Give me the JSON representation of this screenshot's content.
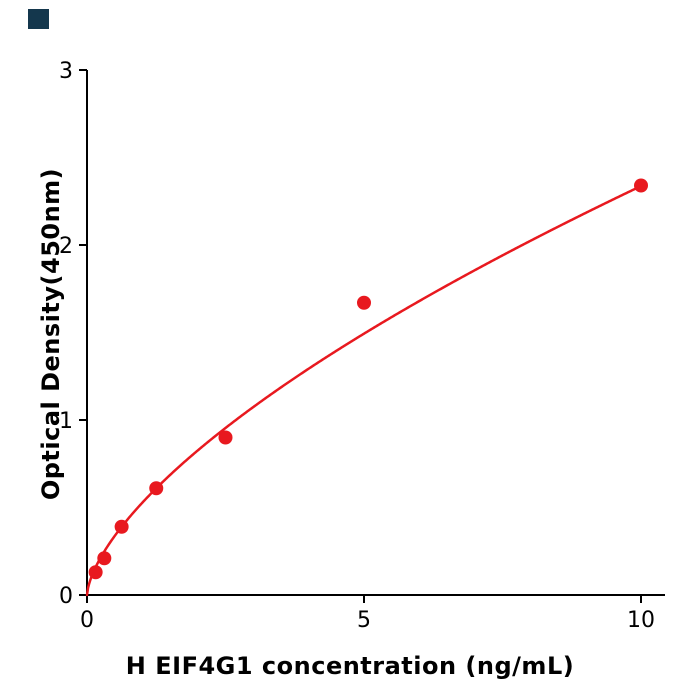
{
  "chart_data": {
    "type": "scatter",
    "title": "",
    "xlabel": "H  EIF4G1 concentration (ng/mL)",
    "ylabel": "Optical Density(450nm)",
    "x_ticks": [
      0,
      5,
      10
    ],
    "y_ticks": [
      0,
      1,
      2,
      3
    ],
    "xlim": [
      0,
      10.45
    ],
    "ylim": [
      0,
      3
    ],
    "grid": false,
    "legend": "none",
    "points": {
      "x": [
        0.156,
        0.3125,
        0.625,
        1.25,
        2.5,
        5,
        10
      ],
      "y": [
        0.13,
        0.21,
        0.39,
        0.61,
        0.9,
        1.67,
        2.34
      ]
    },
    "fit_curve": {
      "model": "power y = a*x^b",
      "a": 0.528,
      "b": 0.646
    },
    "colors": {
      "points": "#e8191f",
      "curve": "#e8191f",
      "axis": "#000000"
    }
  },
  "decorations": {
    "corner_square_color": "#14374d"
  }
}
